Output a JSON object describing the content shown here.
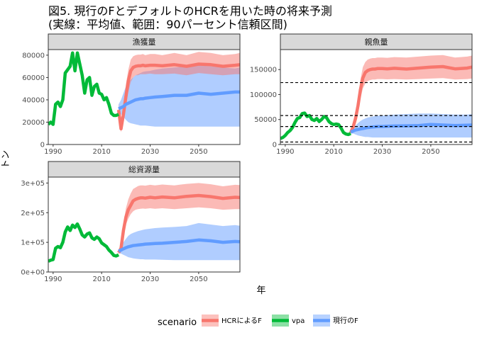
{
  "title_line1": "図5. 現行のFとデフォルトのHCRを用いた時の将来予測",
  "title_line2": "(実線：平均値、範囲：90パーセント信頼区間)",
  "xlabel": "年",
  "ylabel": "トン",
  "legend": {
    "title": "scenario",
    "items": [
      {
        "label": "HCRによるF",
        "color": "#F8766D"
      },
      {
        "label": "vpa",
        "color": "#00BA38"
      },
      {
        "label": "現行のF",
        "color": "#619CFF"
      }
    ]
  },
  "chart_data": [
    {
      "type": "line",
      "panel": "漁獲量",
      "xlim": [
        1988,
        2067
      ],
      "ylim": [
        0,
        85000
      ],
      "x_ticks": [
        1990,
        2010,
        2030,
        2050
      ],
      "y_ticks": [
        0,
        20000,
        40000,
        60000,
        80000
      ],
      "y_tick_labels": [
        "0",
        "20000",
        "40000",
        "60000",
        "80000"
      ],
      "vpa": {
        "x": [
          1988,
          1989,
          1990,
          1991,
          1992,
          1993,
          1994,
          1995,
          1996,
          1997,
          1998,
          1999,
          2000,
          2001,
          2002,
          2003,
          2004,
          2005,
          2006,
          2007,
          2008,
          2009,
          2010,
          2011,
          2012,
          2013,
          2014,
          2015,
          2016,
          2017
        ],
        "y": [
          18000,
          20000,
          18000,
          36000,
          38000,
          34000,
          40000,
          64000,
          67000,
          70000,
          82000,
          66000,
          82000,
          72000,
          62000,
          46000,
          58000,
          60000,
          44000,
          52000,
          54000,
          46000,
          45000,
          40000,
          42000,
          36000,
          28000,
          26000,
          26000,
          27000
        ]
      },
      "hcr": {
        "x": [
          2017,
          2018,
          2019,
          2020,
          2021,
          2022,
          2023,
          2024,
          2025,
          2026,
          2027,
          2028,
          2030,
          2032,
          2035,
          2040,
          2045,
          2050,
          2055,
          2060,
          2065,
          2067
        ],
        "mean": [
          31000,
          14000,
          27000,
          43000,
          57000,
          66000,
          69000,
          70000,
          70500,
          70500,
          71000,
          70500,
          71000,
          71000,
          70500,
          71500,
          70000,
          72000,
          71500,
          70000,
          71000,
          71500
        ],
        "lower": [
          25000,
          11000,
          21000,
          35000,
          47000,
          56000,
          60000,
          62000,
          62000,
          63000,
          63000,
          63000,
          63500,
          63000,
          63000,
          63500,
          62000,
          64000,
          63000,
          62000,
          63000,
          63000
        ],
        "upper": [
          37000,
          18000,
          35000,
          54000,
          67000,
          76000,
          79000,
          80000,
          80500,
          80500,
          81000,
          80000,
          81000,
          81000,
          80000,
          82000,
          80000,
          83000,
          82000,
          80000,
          81000,
          82000
        ]
      },
      "current": {
        "x": [
          2017,
          2018,
          2019,
          2020,
          2021,
          2022,
          2023,
          2024,
          2025,
          2026,
          2027,
          2028,
          2030,
          2032,
          2035,
          2040,
          2045,
          2050,
          2055,
          2060,
          2065,
          2067
        ],
        "mean": [
          32000,
          33000,
          34000,
          36000,
          37000,
          38000,
          39000,
          40000,
          40500,
          41000,
          41000,
          41500,
          42000,
          42500,
          43000,
          44000,
          44000,
          46000,
          45000,
          46000,
          47000,
          47000
        ],
        "lower": [
          28000,
          27000,
          25000,
          22000,
          20000,
          19000,
          18500,
          18000,
          17500,
          17000,
          17000,
          17000,
          16500,
          16000,
          16000,
          16000,
          16000,
          16000,
          16000,
          16000,
          16000,
          16000
        ],
        "upper": [
          36000,
          40000,
          46000,
          52000,
          56000,
          58000,
          60000,
          62000,
          63000,
          64000,
          65000,
          65500,
          66000,
          67000,
          68000,
          69000,
          70000,
          71000,
          70000,
          69000,
          68000,
          69000
        ]
      }
    },
    {
      "type": "line",
      "panel": "親魚量",
      "xlim": [
        1988,
        2067
      ],
      "ylim": [
        0,
        190000
      ],
      "x_ticks": [
        1990,
        2010,
        2030,
        2050
      ],
      "y_ticks": [
        0,
        50000,
        100000,
        150000
      ],
      "y_tick_labels": [
        "0",
        "50000",
        "100000",
        "150000"
      ],
      "reference_lines": [
        124000,
        58000,
        36000,
        5000
      ],
      "vpa": {
        "x": [
          1988,
          1989,
          1990,
          1991,
          1992,
          1993,
          1994,
          1995,
          1996,
          1997,
          1998,
          1999,
          2000,
          2001,
          2002,
          2003,
          2004,
          2005,
          2006,
          2007,
          2008,
          2009,
          2010,
          2011,
          2012,
          2013,
          2014,
          2015,
          2016,
          2017
        ],
        "y": [
          12000,
          14000,
          18000,
          24000,
          28000,
          34000,
          44000,
          52000,
          54000,
          62000,
          63000,
          56000,
          58000,
          50000,
          48000,
          52000,
          46000,
          50000,
          56000,
          54000,
          46000,
          42000,
          40000,
          41000,
          40000,
          33000,
          24000,
          21000,
          20000,
          22000
        ]
      },
      "hcr": {
        "x": [
          2017,
          2018,
          2019,
          2020,
          2021,
          2022,
          2023,
          2024,
          2025,
          2026,
          2027,
          2028,
          2030,
          2032,
          2035,
          2040,
          2045,
          2050,
          2055,
          2060,
          2065,
          2067
        ],
        "mean": [
          24000,
          35000,
          52000,
          78000,
          110000,
          133000,
          144000,
          148000,
          150000,
          151000,
          151000,
          152000,
          152000,
          151500,
          152500,
          151000,
          153000,
          155000,
          156000,
          151500,
          153000,
          155000
        ],
        "lower": [
          21000,
          30000,
          44000,
          65000,
          92000,
          112000,
          122000,
          127000,
          129000,
          130000,
          130000,
          131000,
          131000,
          130500,
          131000,
          130000,
          131000,
          132000,
          133000,
          130000,
          131000,
          132000
        ],
        "upper": [
          27000,
          40000,
          60000,
          92000,
          130000,
          155000,
          165000,
          170000,
          172000,
          173000,
          173000,
          174000,
          174000,
          173500,
          175000,
          174000,
          176000,
          178000,
          179000,
          174000,
          176000,
          178000
        ]
      },
      "current": {
        "x": [
          2017,
          2018,
          2019,
          2020,
          2021,
          2022,
          2023,
          2024,
          2025,
          2026,
          2027,
          2028,
          2030,
          2032,
          2035,
          2040,
          2045,
          2050,
          2055,
          2060,
          2065,
          2067
        ],
        "mean": [
          25000,
          27000,
          29000,
          30000,
          31000,
          32000,
          33000,
          34000,
          34500,
          35000,
          35500,
          36000,
          36000,
          36500,
          37000,
          37500,
          38000,
          40000,
          39000,
          38000,
          38500,
          39000
        ],
        "lower": [
          22000,
          22000,
          20000,
          18000,
          17000,
          16000,
          15000,
          15000,
          14500,
          14000,
          14000,
          14000,
          14000,
          14000,
          14000,
          14000,
          14000,
          14000,
          14000,
          14000,
          14000,
          14000
        ],
        "upper": [
          28000,
          33000,
          38000,
          43000,
          47000,
          50000,
          52000,
          54000,
          55000,
          56000,
          57000,
          58000,
          58000,
          59000,
          60000,
          61000,
          62000,
          62000,
          61000,
          60000,
          60000,
          61000
        ]
      }
    },
    {
      "type": "line",
      "panel": "総資源量",
      "xlim": [
        1988,
        2067
      ],
      "ylim": [
        0,
        320000
      ],
      "x_ticks": [
        1990,
        2010,
        2030,
        2050
      ],
      "y_ticks": [
        0,
        100000,
        200000,
        300000
      ],
      "y_tick_labels": [
        "0e+00",
        "1e+05",
        "2e+05",
        "3e+05"
      ],
      "vpa": {
        "x": [
          1988,
          1989,
          1990,
          1991,
          1992,
          1993,
          1994,
          1995,
          1996,
          1997,
          1998,
          1999,
          2000,
          2001,
          2002,
          2003,
          2004,
          2005,
          2006,
          2007,
          2008,
          2009,
          2010,
          2011,
          2012,
          2013,
          2014,
          2015,
          2016,
          2017
        ],
        "y": [
          36000,
          40000,
          42000,
          80000,
          86000,
          82000,
          100000,
          135000,
          152000,
          140000,
          158000,
          150000,
          162000,
          145000,
          125000,
          118000,
          128000,
          132000,
          115000,
          110000,
          118000,
          112000,
          98000,
          92000,
          86000,
          74000,
          66000,
          56000,
          54000,
          58000
        ]
      },
      "hcr": {
        "x": [
          2017,
          2018,
          2019,
          2020,
          2021,
          2022,
          2023,
          2024,
          2025,
          2026,
          2027,
          2028,
          2030,
          2032,
          2035,
          2040,
          2045,
          2050,
          2055,
          2060,
          2065,
          2067
        ],
        "mean": [
          65000,
          80000,
          140000,
          185000,
          210000,
          225000,
          240000,
          245000,
          248000,
          250000,
          250000,
          249000,
          252000,
          250000,
          253000,
          250000,
          255000,
          258000,
          254000,
          248000,
          252000,
          251000
        ],
        "lower": [
          60000,
          72000,
          120000,
          160000,
          180000,
          195000,
          205000,
          210000,
          212000,
          213000,
          214000,
          213000,
          215000,
          213000,
          215000,
          212000,
          215000,
          218000,
          215000,
          210000,
          212000,
          212000
        ],
        "upper": [
          70000,
          90000,
          165000,
          215000,
          245000,
          265000,
          280000,
          285000,
          290000,
          292000,
          292000,
          291000,
          294000,
          292000,
          295000,
          292000,
          297000,
          300000,
          296000,
          289000,
          294000,
          293000
        ]
      },
      "current": {
        "x": [
          2017,
          2018,
          2019,
          2020,
          2021,
          2022,
          2023,
          2024,
          2025,
          2026,
          2027,
          2028,
          2030,
          2032,
          2035,
          2040,
          2045,
          2050,
          2055,
          2060,
          2065,
          2067
        ],
        "mean": [
          70000,
          74000,
          78000,
          82000,
          85000,
          87000,
          89000,
          90000,
          91000,
          92000,
          93000,
          94000,
          95000,
          96000,
          97000,
          100000,
          103000,
          108000,
          105000,
          100000,
          103000,
          102000
        ],
        "lower": [
          64000,
          62000,
          58000,
          54000,
          50000,
          48000,
          46000,
          45000,
          44000,
          43000,
          43000,
          42000,
          42000,
          42000,
          41000,
          40000,
          40000,
          40000,
          40000,
          40000,
          40000,
          40000
        ],
        "upper": [
          76000,
          88000,
          100000,
          112000,
          122000,
          128000,
          132000,
          135000,
          138000,
          140000,
          142000,
          144000,
          146000,
          148000,
          150000,
          152000,
          155000,
          165000,
          160000,
          155000,
          158000,
          156000
        ]
      }
    }
  ]
}
